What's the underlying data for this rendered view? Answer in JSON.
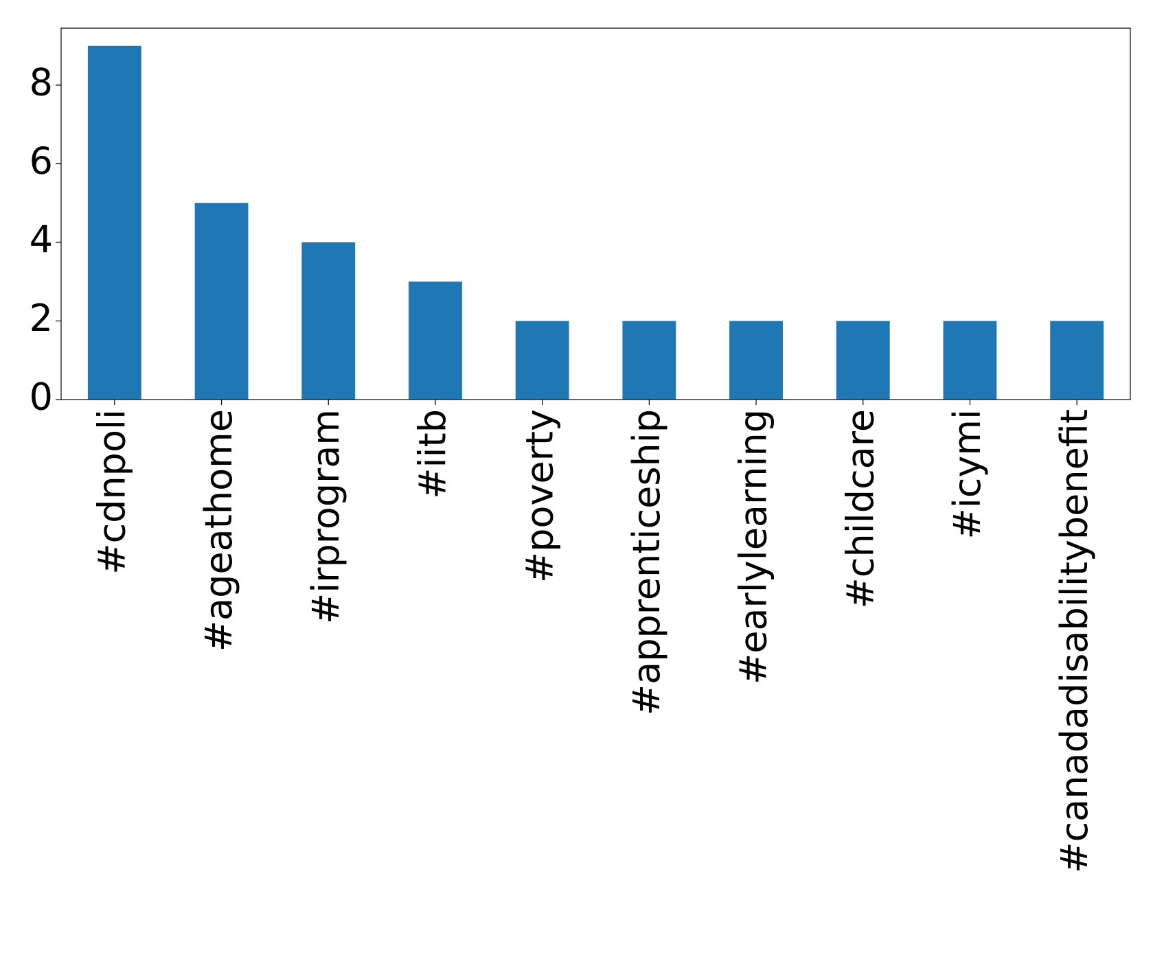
{
  "chart_data": {
    "type": "bar",
    "categories": [
      "#cdnpoli",
      "#ageathome",
      "#irprogram",
      "#iitb",
      "#poverty",
      "#apprenticeship",
      "#earlylearning",
      "#childcare",
      "#icymi",
      "#canadadisabilitybenefit"
    ],
    "values": [
      9,
      5,
      4,
      3,
      2,
      2,
      2,
      2,
      2,
      2
    ],
    "color": "#1f77b4",
    "ylim": [
      0,
      9.45
    ],
    "yticks": [
      0,
      2,
      4,
      6,
      8
    ],
    "grid": false
  }
}
